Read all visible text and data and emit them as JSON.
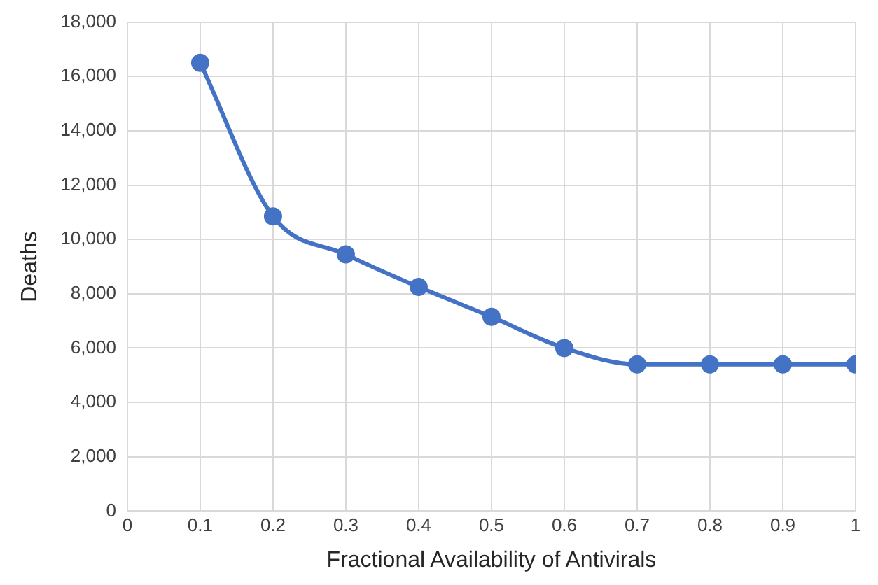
{
  "chart_data": {
    "type": "line",
    "xlabel": "Fractional Availability of Antivirals",
    "ylabel": "Deaths",
    "x": [
      0.1,
      0.2,
      0.3,
      0.4,
      0.5,
      0.6,
      0.7,
      0.8,
      0.9,
      1
    ],
    "series": [
      {
        "color": "#4472c4",
        "values": [
          16500,
          10850,
          9450,
          8250,
          7150,
          6000,
          5400,
          5400,
          5400,
          5400
        ]
      }
    ],
    "xlim": [
      0,
      1
    ],
    "xticks": [
      0,
      0.1,
      0.2,
      0.3,
      0.4,
      0.5,
      0.6,
      0.7,
      0.8,
      0.9,
      1
    ],
    "ylim": [
      0,
      18000
    ],
    "yticks": [
      {
        "value": 0,
        "label": "0"
      },
      {
        "value": 2000,
        "label": "2,000"
      },
      {
        "value": 4000,
        "label": "4,000"
      },
      {
        "value": 6000,
        "label": "6,000"
      },
      {
        "value": 8000,
        "label": "8,000"
      },
      {
        "value": 10000,
        "label": "10,000"
      },
      {
        "value": 12000,
        "label": "12,000"
      },
      {
        "value": 14000,
        "label": "14,000"
      },
      {
        "value": 16000,
        "label": "16,000"
      },
      {
        "value": 18000,
        "label": "18,000"
      }
    ],
    "grid": true,
    "marker": "circle",
    "line_style": "solid",
    "legend": false
  }
}
